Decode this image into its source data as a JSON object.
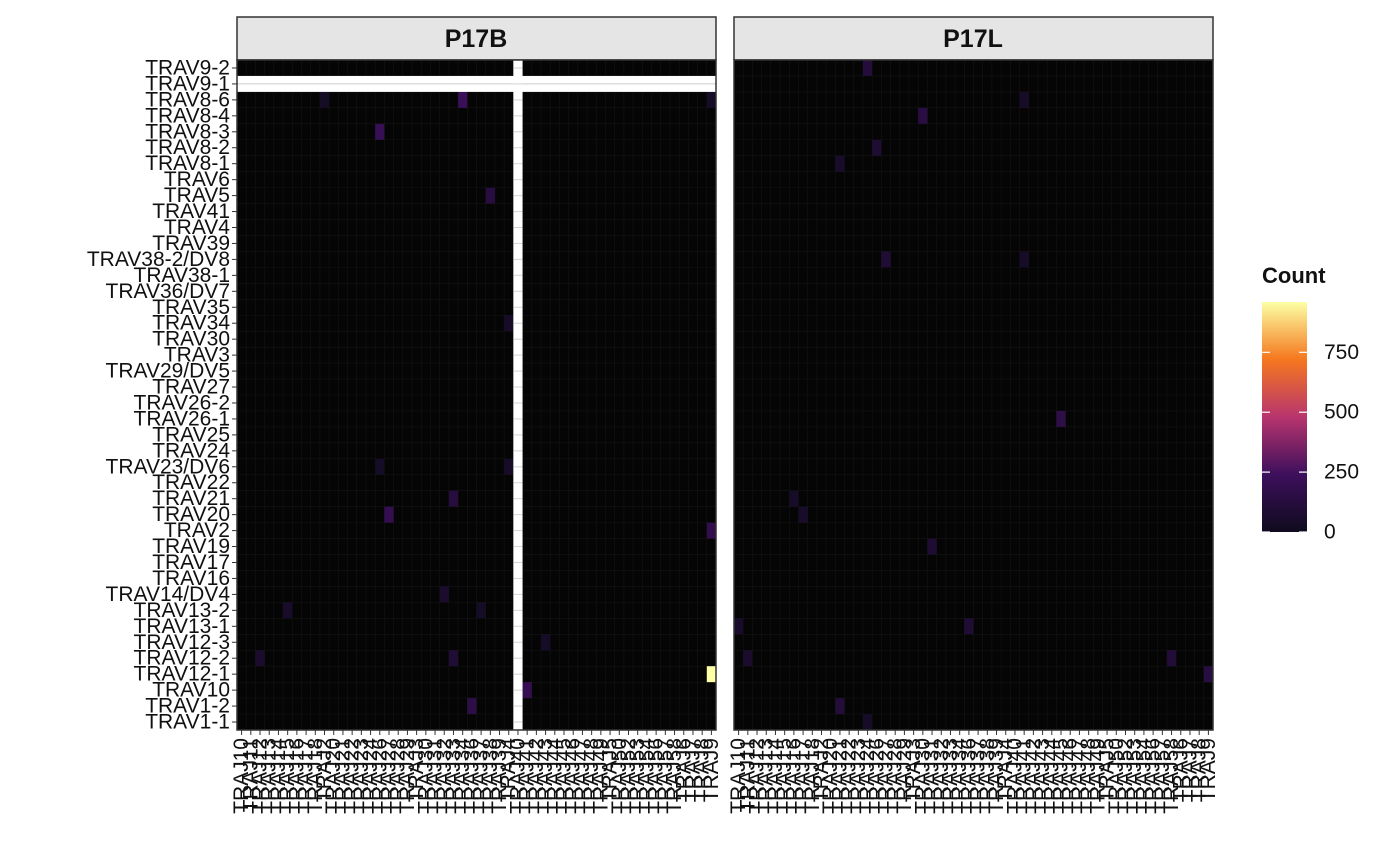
{
  "chart_data": {
    "type": "heatmap",
    "facets": [
      "P17B",
      "P17L"
    ],
    "y_categories": [
      "TRAV9-2",
      "TRAV9-1",
      "TRAV8-6",
      "TRAV8-4",
      "TRAV8-3",
      "TRAV8-2",
      "TRAV8-1",
      "TRAV6",
      "TRAV5",
      "TRAV41",
      "TRAV4",
      "TRAV39",
      "TRAV38-2/DV8",
      "TRAV38-1",
      "TRAV36/DV7",
      "TRAV35",
      "TRAV34",
      "TRAV30",
      "TRAV3",
      "TRAV29/DV5",
      "TRAV27",
      "TRAV26-2",
      "TRAV26-1",
      "TRAV25",
      "TRAV24",
      "TRAV23/DV6",
      "TRAV22",
      "TRAV21",
      "TRAV20",
      "TRAV2",
      "TRAV19",
      "TRAV17",
      "TRAV16",
      "TRAV14/DV4",
      "TRAV13-2",
      "TRAV13-1",
      "TRAV12-3",
      "TRAV12-2",
      "TRAV12-1",
      "TRAV10",
      "TRAV1-2",
      "TRAV1-1"
    ],
    "x_categories": [
      "TRAJ10",
      "TRAJ11",
      "TRAJ12",
      "TRAJ13",
      "TRAJ14",
      "TRAJ15",
      "TRAJ16",
      "TRAJ17",
      "TRAJ18",
      "TRAJ2",
      "TRAJ20",
      "TRAJ21",
      "TRAJ22",
      "TRAJ23",
      "TRAJ24",
      "TRAJ26",
      "TRAJ27",
      "TRAJ28",
      "TRAJ29",
      "TRAJ3",
      "TRAJ30",
      "TRAJ31",
      "TRAJ32",
      "TRAJ33",
      "TRAJ34",
      "TRAJ36",
      "TRAJ37",
      "TRAJ38",
      "TRAJ39",
      "TRAJ4",
      "TRAJ40",
      "TRAJ41",
      "TRAJ42",
      "TRAJ43",
      "TRAJ44",
      "TRAJ45",
      "TRAJ46",
      "TRAJ47",
      "TRAJ48",
      "TRAJ49",
      "TRAJ5",
      "TRAJ50",
      "TRAJ52",
      "TRAJ53",
      "TRAJ54",
      "TRAJ56",
      "TRAJ57",
      "TRAJ58",
      "TRAJ6",
      "TRAJ7",
      "TRAJ8",
      "TRAJ9"
    ],
    "missing": {
      "P17B": {
        "rows": [
          "TRAV9-1"
        ],
        "columns": [
          "TRAJ40"
        ]
      }
    },
    "cells": {
      "P17B": [
        {
          "x": "TRAJ34",
          "y": "TRAV8-6",
          "value": 220
        },
        {
          "x": "TRAJ26",
          "y": "TRAV8-3",
          "value": 210
        },
        {
          "x": "TRAJ38",
          "y": "TRAV5",
          "value": 130
        },
        {
          "x": "TRAJ33",
          "y": "TRAV21",
          "value": 120
        },
        {
          "x": "TRAJ27",
          "y": "TRAV20",
          "value": 200
        },
        {
          "x": "TRAJ9",
          "y": "TRAV2",
          "value": 180
        },
        {
          "x": "TRAJ9",
          "y": "TRAV12-1",
          "value": 960
        },
        {
          "x": "TRAJ41",
          "y": "TRAV10",
          "value": 200
        },
        {
          "x": "TRAJ36",
          "y": "TRAV1-2",
          "value": 160
        },
        {
          "x": "TRAJ33",
          "y": "TRAV12-2",
          "value": 90
        },
        {
          "x": "TRAJ32",
          "y": "TRAV14/DV4",
          "value": 60
        },
        {
          "x": "TRAJ12",
          "y": "TRAV12-2",
          "value": 60
        },
        {
          "x": "TRAJ15",
          "y": "TRAV13-2",
          "value": 50
        },
        {
          "x": "TRAJ9",
          "y": "TRAV8-6",
          "value": 40
        },
        {
          "x": "TRAJ4",
          "y": "TRAV34",
          "value": 40
        },
        {
          "x": "TRAJ4",
          "y": "TRAV23/DV6",
          "value": 40
        },
        {
          "x": "TRAJ43",
          "y": "TRAV12-3",
          "value": 40
        },
        {
          "x": "TRAJ37",
          "y": "TRAV13-2",
          "value": 30
        },
        {
          "x": "TRAJ26",
          "y": "TRAV23/DV6",
          "value": 30
        },
        {
          "x": "TRAJ2",
          "y": "TRAV8-6",
          "value": 30
        }
      ],
      "P17L": [
        {
          "x": "TRAJ24",
          "y": "TRAV9-2",
          "value": 110
        },
        {
          "x": "TRAJ30",
          "y": "TRAV8-4",
          "value": 140
        },
        {
          "x": "TRAJ26",
          "y": "TRAV8-2",
          "value": 80
        },
        {
          "x": "TRAJ21",
          "y": "TRAV8-1",
          "value": 50
        },
        {
          "x": "TRAJ27",
          "y": "TRAV38-2/DV8",
          "value": 90
        },
        {
          "x": "TRAJ45",
          "y": "TRAV26-1",
          "value": 160
        },
        {
          "x": "TRAJ31",
          "y": "TRAV19",
          "value": 80
        },
        {
          "x": "TRAJ36",
          "y": "TRAV13-1",
          "value": 90
        },
        {
          "x": "TRAJ9",
          "y": "TRAV12-1",
          "value": 130
        },
        {
          "x": "TRAJ58",
          "y": "TRAV12-2",
          "value": 100
        },
        {
          "x": "TRAJ21",
          "y": "TRAV1-2",
          "value": 110
        },
        {
          "x": "TRAJ11",
          "y": "TRAV12-2",
          "value": 60
        },
        {
          "x": "TRAJ10",
          "y": "TRAV13-1",
          "value": 50
        },
        {
          "x": "TRAJ17",
          "y": "TRAV20",
          "value": 50
        },
        {
          "x": "TRAJ41",
          "y": "TRAV8-6",
          "value": 40
        },
        {
          "x": "TRAJ24",
          "y": "TRAV1-1",
          "value": 40
        },
        {
          "x": "TRAJ16",
          "y": "TRAV21",
          "value": 40
        },
        {
          "x": "TRAJ41",
          "y": "TRAV38-2/DV8",
          "value": 40
        }
      ]
    },
    "legend": {
      "title": "Count",
      "ticks": [
        0,
        250,
        500,
        750
      ],
      "range": [
        0,
        960
      ],
      "colors": [
        "#0f0b1e",
        "#3d0f5c",
        "#b8356e",
        "#f5771e",
        "#fcffa4"
      ],
      "position": "right"
    },
    "panel_background": "#050505",
    "missing_color": "#ffffff"
  }
}
